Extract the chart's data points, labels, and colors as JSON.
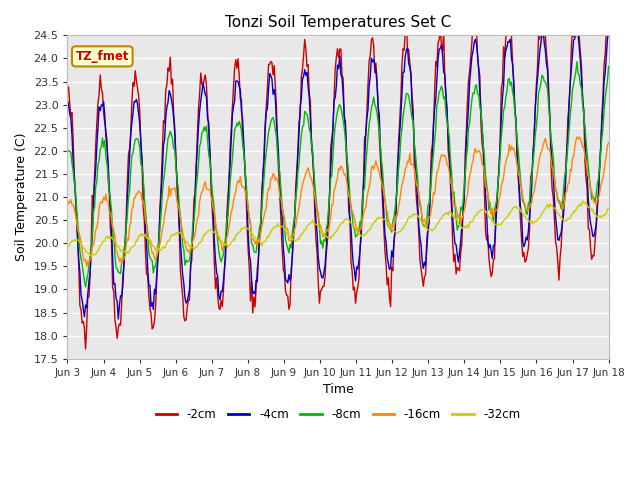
{
  "title": "Tonzi Soil Temperatures Set C",
  "xlabel": "Time",
  "ylabel": "Soil Temperature (C)",
  "ylim": [
    17.5,
    24.5
  ],
  "annotation_text": "TZ_fmet",
  "annotation_bg": "#ffffcc",
  "annotation_border": "#bb8800",
  "plot_bg": "#e8e8e8",
  "grid_color": "white",
  "series": [
    {
      "label": "-2cm",
      "color": "#cc0000",
      "amplitude": 2.7,
      "phase_delay": 0.0,
      "trend": 0.0038,
      "base": 20.65,
      "noise": 0.18
    },
    {
      "label": "-4cm",
      "color": "#0000cc",
      "amplitude": 2.3,
      "phase_delay": 0.08,
      "trend": 0.0038,
      "base": 20.65,
      "noise": 0.1
    },
    {
      "label": "-8cm",
      "color": "#00bb00",
      "amplitude": 1.45,
      "phase_delay": 0.22,
      "trend": 0.0038,
      "base": 20.6,
      "noise": 0.07
    },
    {
      "label": "-16cm",
      "color": "#ff8800",
      "amplitude": 0.72,
      "phase_delay": 0.55,
      "trend": 0.003,
      "base": 20.2,
      "noise": 0.05
    },
    {
      "label": "-32cm",
      "color": "#cccc00",
      "amplitude": 0.18,
      "phase_delay": 1.4,
      "trend": 0.0018,
      "base": 19.88,
      "noise": 0.02
    }
  ],
  "xtick_labels": [
    "Jun 3",
    "Jun 4",
    "Jun 5",
    "Jun 6",
    "Jun 7",
    "Jun 8",
    "Jun 9",
    "Jun 10",
    "Jun 11",
    "Jun 12",
    "Jun 13",
    "Jun 14",
    "Jun 15",
    "Jun 16",
    "Jun 17",
    "Jun 18"
  ],
  "n_points": 480,
  "period": 30
}
